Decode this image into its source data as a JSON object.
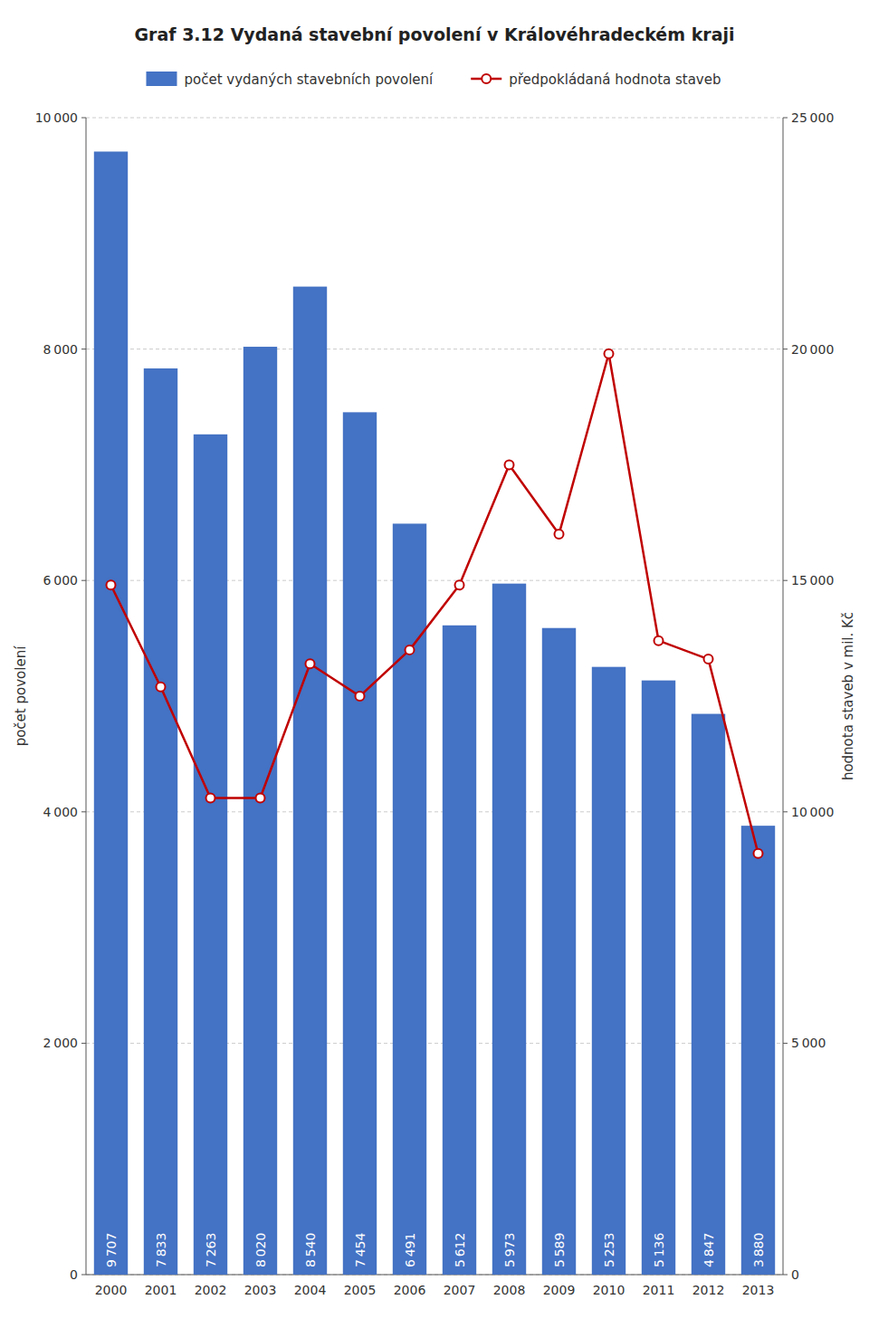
{
  "chart_data": {
    "type": "bar",
    "title": "Graf 3.12 Vydaná stavební povolení v Královéhradeckém kraji",
    "categories": [
      "2000",
      "2001",
      "2002",
      "2003",
      "2004",
      "2005",
      "2006",
      "2007",
      "2008",
      "2009",
      "2010",
      "2011",
      "2012",
      "2013"
    ],
    "series": [
      {
        "name": "počet vydaných stavebních povolení",
        "type": "bar",
        "color": "#4472C4",
        "values": [
          9707,
          7833,
          7263,
          8020,
          8540,
          7454,
          6491,
          5612,
          5973,
          5589,
          5253,
          5136,
          4847,
          3880
        ],
        "data_labels": true,
        "value_labels": [
          "9 707",
          "7 833",
          "7 263",
          "8 020",
          "8 540",
          "7 454",
          "6 491",
          "5 612",
          "5 973",
          "5 589",
          "5 253",
          "5 136",
          "4 847",
          "3 880"
        ]
      },
      {
        "name": "předpokládaná hodnota staveb",
        "type": "line",
        "color": "#C00000",
        "axis": "y2",
        "marker": "circle",
        "values": [
          14900,
          12700,
          10300,
          10300,
          13200,
          12500,
          13500,
          14900,
          17500,
          16000,
          19900,
          13700,
          13300,
          9100
        ]
      }
    ],
    "ylabel": "počet povolení",
    "y2label": "hodnota staveb v mil. Kč",
    "ylim": [
      0,
      10000
    ],
    "yticks": [
      0,
      {
        "value": 2000,
        "label": "2 000"
      },
      {
        "value": 4000,
        "label": "4 000"
      },
      {
        "value": 6000,
        "label": "6 000"
      },
      {
        "value": 8000,
        "label": "8 000"
      },
      {
        "value": 10000,
        "label": "10 000"
      }
    ],
    "y2lim": [
      0,
      25000
    ],
    "y2ticks": [
      0,
      {
        "value": 5000,
        "label": "5 000"
      },
      {
        "value": 10000,
        "label": "10 000"
      },
      {
        "value": 15000,
        "label": "15 000"
      },
      {
        "value": 20000,
        "label": "20 000"
      },
      {
        "value": 25000,
        "label": "25 000"
      }
    ],
    "grid": true,
    "legend": "top"
  }
}
